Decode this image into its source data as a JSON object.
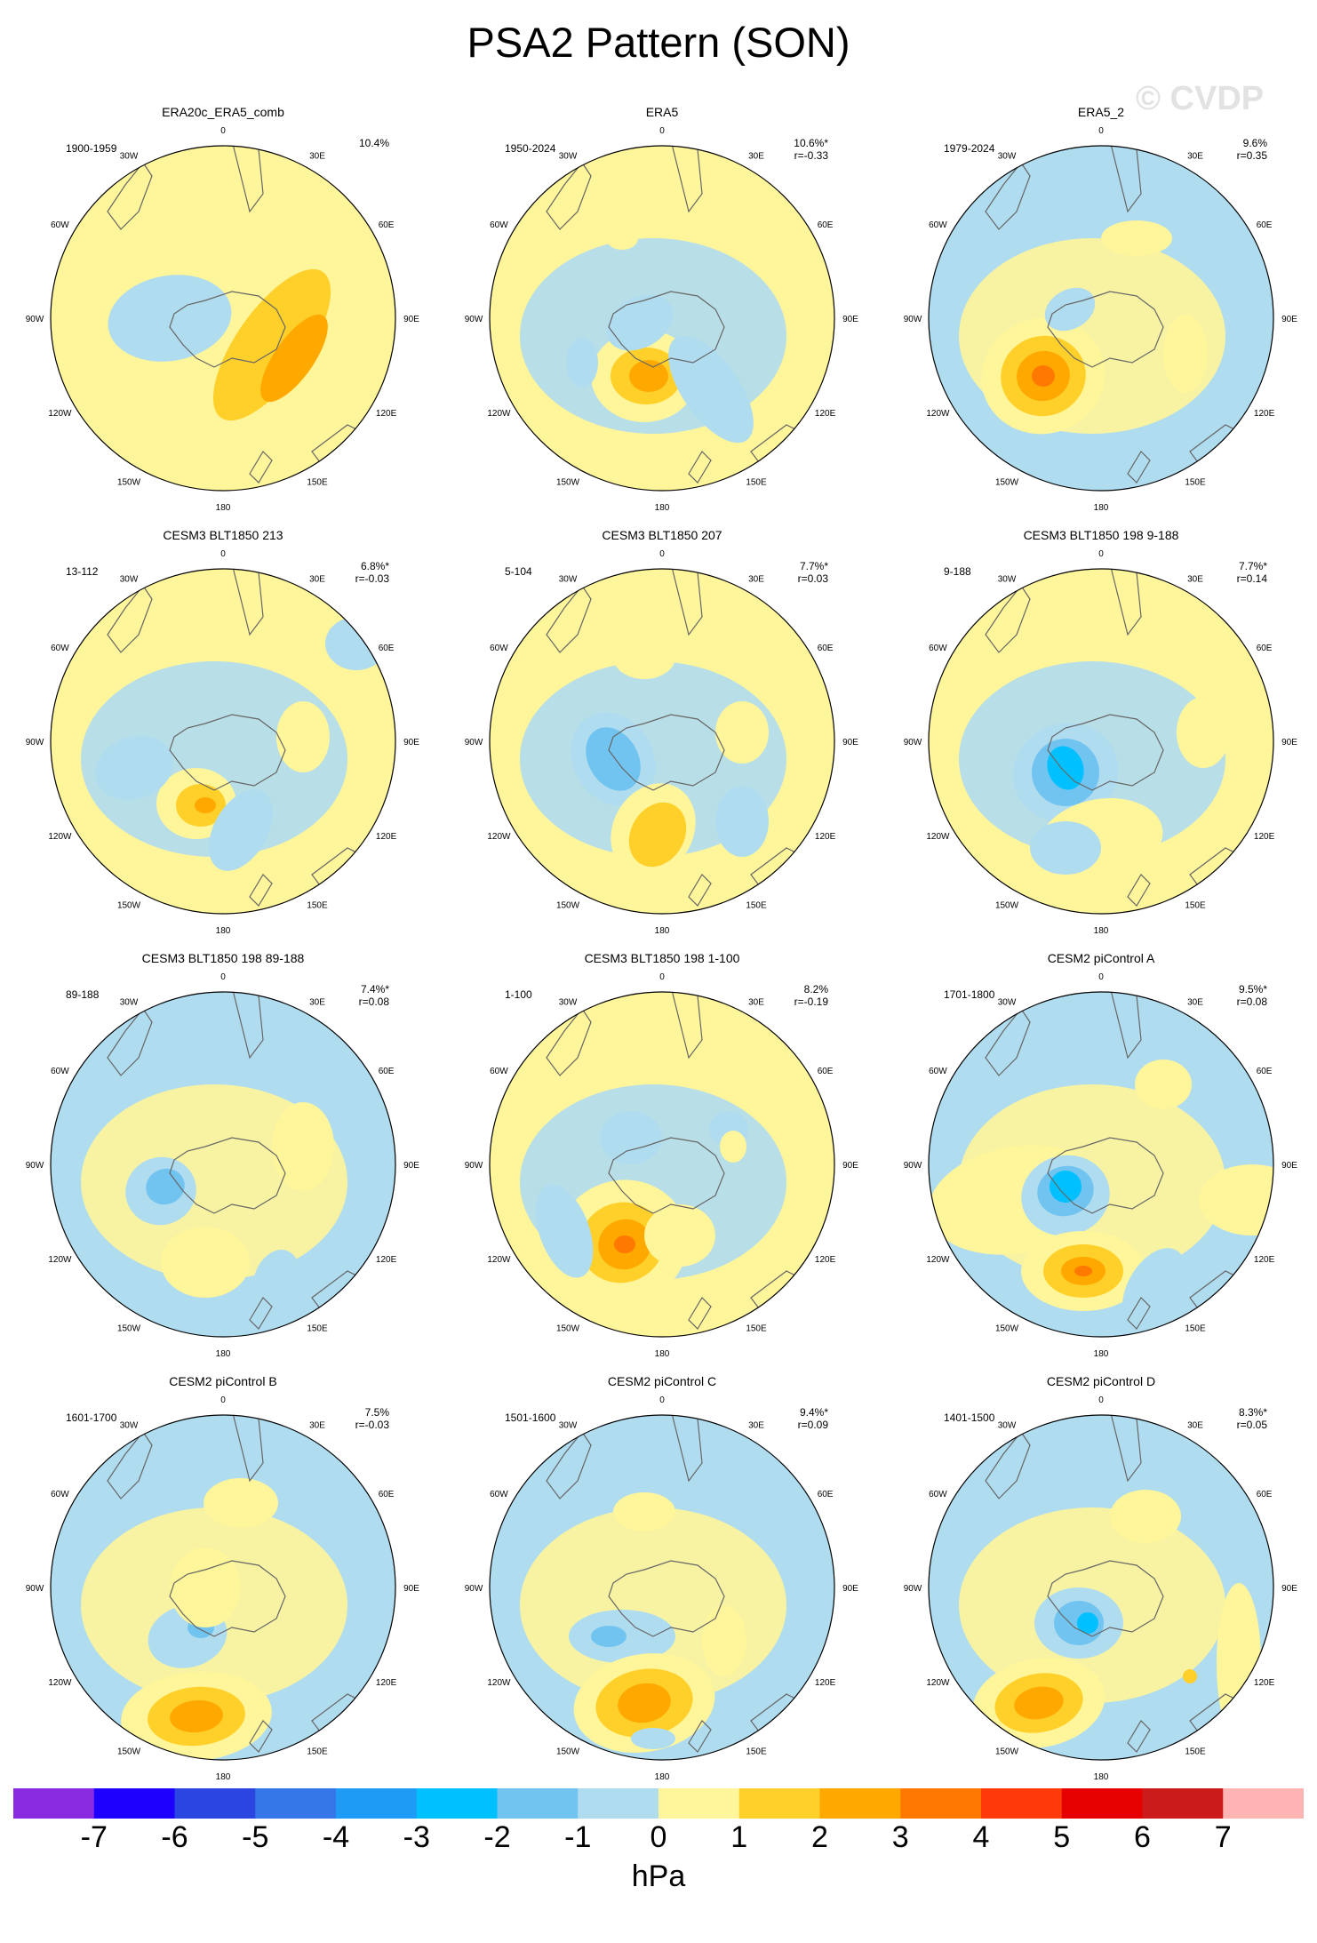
{
  "title": "PSA2 Pattern (SON)",
  "watermark": "© CVDP",
  "lon_labels": [
    "0",
    "30E",
    "60E",
    "90E",
    "120E",
    "150E",
    "180",
    "150W",
    "120W",
    "90W",
    "60W",
    "30W"
  ],
  "panels": [
    {
      "title": "ERA20c_ERA5_comb",
      "period": "1900-1959",
      "pct": "10.4%",
      "r": ""
    },
    {
      "title": "ERA5",
      "period": "1950-2024",
      "pct": "10.6%*",
      "r": "r=-0.33"
    },
    {
      "title": "ERA5_2",
      "period": "1979-2024",
      "pct": "9.6%",
      "r": "r=0.35"
    },
    {
      "title": "CESM3 BLT1850 213",
      "period": "13-112",
      "pct": "6.8%*",
      "r": "r=-0.03"
    },
    {
      "title": "CESM3 BLT1850 207",
      "period": "5-104",
      "pct": "7.7%*",
      "r": "r=0.03"
    },
    {
      "title": "CESM3 BLT1850 198 9-188",
      "period": "9-188",
      "pct": "7.7%*",
      "r": "r=0.14"
    },
    {
      "title": "CESM3 BLT1850 198 89-188",
      "period": "89-188",
      "pct": "7.4%*",
      "r": "r=0.08"
    },
    {
      "title": "CESM3 BLT1850 198 1-100",
      "period": "1-100",
      "pct": "8.2%",
      "r": "r=-0.19"
    },
    {
      "title": "CESM2 piControl A",
      "period": "1701-1800",
      "pct": "9.5%*",
      "r": "r=0.08"
    },
    {
      "title": "CESM2 piControl B",
      "period": "1601-1700",
      "pct": "7.5%",
      "r": "r=-0.03"
    },
    {
      "title": "CESM2 piControl C",
      "period": "1501-1600",
      "pct": "9.4%*",
      "r": "r=0.09"
    },
    {
      "title": "CESM2 piControl D",
      "period": "1401-1500",
      "pct": "8.3%*",
      "r": "r=0.05"
    }
  ],
  "colorbar": {
    "units": "hPa",
    "labels": [
      "-7",
      "-6",
      "-5",
      "-4",
      "-3",
      "-2",
      "-1",
      "0",
      "1",
      "2",
      "3",
      "4",
      "5",
      "6",
      "7"
    ],
    "colors": [
      "#8a2be2",
      "#1e00ff",
      "#2a45e0",
      "#3576e8",
      "#1e9cf5",
      "#00c0ff",
      "#72c4f0",
      "#b0dcf0",
      "#fff59a",
      "#ffd02a",
      "#ffa800",
      "#ff7800",
      "#ff3a0a",
      "#e60000",
      "#cc1b1b",
      "#ffb4b4"
    ]
  },
  "map_colors": {
    "ocean_neg": "#b0dcf0",
    "pos_base": "#fff59a",
    "coast": "#666666"
  }
}
